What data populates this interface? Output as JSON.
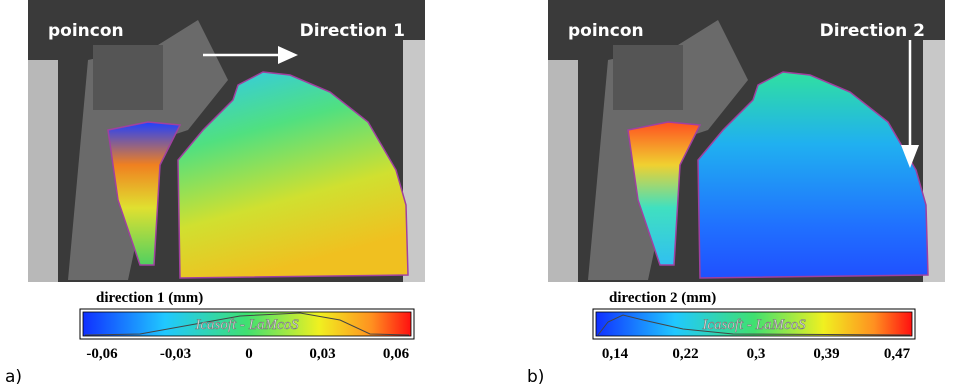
{
  "panels": [
    {
      "label": "a)",
      "overlay_left": "poincon",
      "overlay_right": "Direction 1",
      "colorbar_title": "direction 1 (mm)",
      "colorbar_ticks": [
        "-0,06",
        "-0,03",
        "0",
        "0,03",
        "0,06"
      ],
      "watermark": "Icasoft - LaMcoS"
    },
    {
      "label": "b)",
      "overlay_left": "poincon",
      "overlay_right": "Direction 2",
      "colorbar_title": "direction 2 (mm)",
      "colorbar_ticks": [
        "0,14",
        "0,22",
        "0,3",
        "0,39",
        "0,47"
      ],
      "watermark": "Icasoft - LaMcoS"
    }
  ]
}
